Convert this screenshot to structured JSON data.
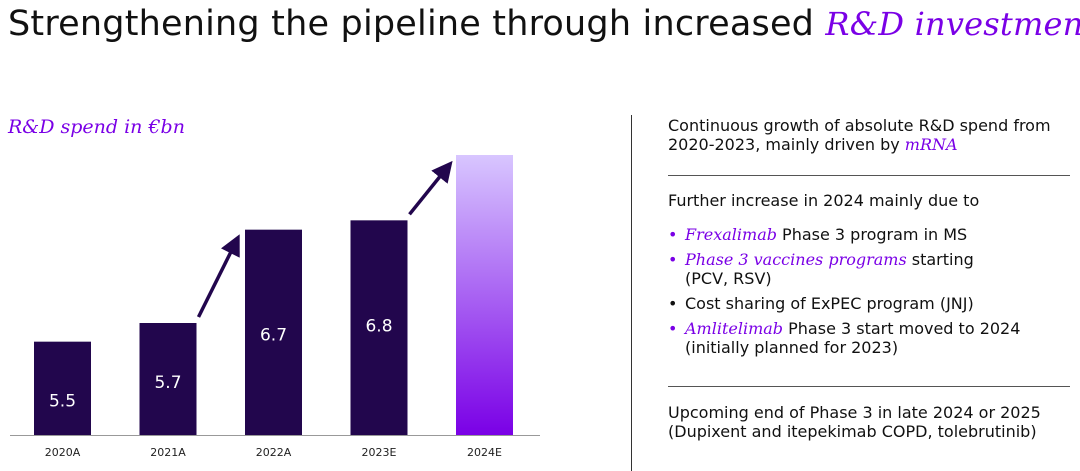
{
  "title": {
    "main": "Strengthening the pipeline through increased ",
    "accent": "R&D investment"
  },
  "chart_data": {
    "type": "bar",
    "title": "R&D spend in €bn",
    "categories": [
      "2020A",
      "2021A",
      "2022A",
      "2023E",
      "2024E"
    ],
    "values": [
      5.5,
      5.7,
      6.7,
      6.8,
      null
    ],
    "value_labels": [
      "5.5",
      "5.7",
      "6.7",
      "6.8",
      ""
    ],
    "estimated_bar_value": 7.5,
    "ylim": [
      4.5,
      7.5
    ],
    "grid": false,
    "annotations": [
      "arrow 2021A to 2022A",
      "arrow 2023E to 2024E"
    ],
    "colors": {
      "bar": "#22064d",
      "gradient_top": "#d8c6ff",
      "gradient_bottom": "#7a00e6",
      "arrow": "#22064d"
    }
  },
  "panel": {
    "block1_text": "Continuous growth of absolute R&D spend from 2020-2023, mainly driven by ",
    "block1_italic": "mRNA",
    "block2_intro": "Further increase in 2024 mainly due to",
    "bullets": [
      {
        "italic": "Frexalimab",
        "rest": " Phase 3 program in MS"
      },
      {
        "italic": "Phase 3 vaccines programs",
        "rest": " starting\n(PCV, RSV)"
      },
      {
        "italic": "",
        "rest": "Cost sharing of ExPEC program (JNJ)"
      },
      {
        "italic": "Amlitelimab",
        "rest": " Phase 3 start moved to 2024\n(initially planned for 2023)"
      }
    ],
    "block3_text": "Upcoming end of Phase 3 in late 2024 or 2025 (Dupixent and itepekimab COPD, tolebrutinib)"
  }
}
